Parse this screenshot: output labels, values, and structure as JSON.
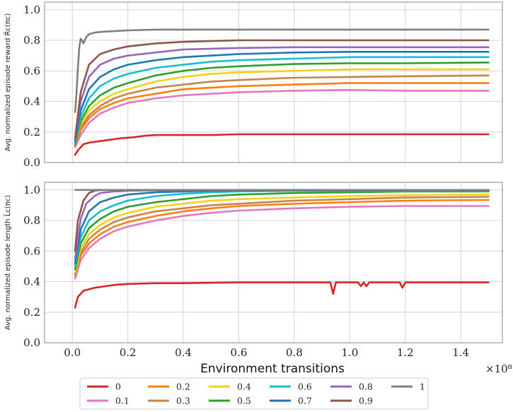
{
  "chart_data": [
    {
      "type": "line",
      "ylabel": "Avg. normalized episode reward R̂c(πc)",
      "xlabel": "",
      "xlim": [
        -0.1,
        1.55
      ],
      "ylim": [
        0.0,
        1.05
      ],
      "xticks": [
        0.0,
        0.2,
        0.4,
        0.6,
        0.8,
        1.0,
        1.2,
        1.4
      ],
      "yticks": [
        0.0,
        0.2,
        0.4,
        0.6,
        0.8,
        1.0
      ],
      "xtick_labels": [
        "",
        "",
        "",
        "",
        "",
        "",
        "",
        ""
      ],
      "ytick_labels": [
        "0.0",
        "0.2",
        "0.4",
        "0.6",
        "0.8",
        "1.0"
      ],
      "grid": true,
      "series": [
        {
          "name": "0",
          "color": "#d62728",
          "x": [
            0.01,
            0.02,
            0.04,
            0.06,
            0.1,
            0.14,
            0.18,
            0.22,
            0.26,
            0.3,
            0.4,
            0.5,
            0.6,
            0.7,
            0.8,
            1.0,
            1.2,
            1.5
          ],
          "y": [
            0.05,
            0.08,
            0.12,
            0.13,
            0.14,
            0.15,
            0.16,
            0.165,
            0.175,
            0.18,
            0.18,
            0.18,
            0.185,
            0.185,
            0.185,
            0.185,
            0.185,
            0.185
          ]
        },
        {
          "name": "0.1",
          "color": "#e377c2",
          "x": [
            0.01,
            0.03,
            0.06,
            0.1,
            0.15,
            0.2,
            0.3,
            0.4,
            0.5,
            0.6,
            0.8,
            1.0,
            1.2,
            1.5
          ],
          "y": [
            0.1,
            0.18,
            0.26,
            0.32,
            0.36,
            0.39,
            0.42,
            0.44,
            0.45,
            0.46,
            0.47,
            0.475,
            0.47,
            0.47
          ]
        },
        {
          "name": "0.2",
          "color": "#ff7f0e",
          "x": [
            0.01,
            0.03,
            0.06,
            0.1,
            0.15,
            0.2,
            0.3,
            0.4,
            0.5,
            0.6,
            0.8,
            1.0,
            1.2,
            1.5
          ],
          "y": [
            0.11,
            0.21,
            0.29,
            0.35,
            0.39,
            0.42,
            0.45,
            0.48,
            0.49,
            0.5,
            0.51,
            0.52,
            0.52,
            0.52
          ]
        },
        {
          "name": "0.3",
          "color": "#c5844e",
          "x": [
            0.01,
            0.03,
            0.06,
            0.1,
            0.15,
            0.2,
            0.3,
            0.4,
            0.5,
            0.6,
            0.8,
            1.0,
            1.2,
            1.5
          ],
          "y": [
            0.11,
            0.23,
            0.31,
            0.37,
            0.42,
            0.45,
            0.49,
            0.51,
            0.53,
            0.54,
            0.555,
            0.56,
            0.565,
            0.57
          ]
        },
        {
          "name": "0.4",
          "color": "#f7d117",
          "x": [
            0.01,
            0.03,
            0.06,
            0.1,
            0.15,
            0.2,
            0.3,
            0.4,
            0.5,
            0.6,
            0.8,
            1.0,
            1.2,
            1.5
          ],
          "y": [
            0.12,
            0.25,
            0.34,
            0.4,
            0.45,
            0.48,
            0.53,
            0.56,
            0.58,
            0.59,
            0.6,
            0.61,
            0.61,
            0.61
          ]
        },
        {
          "name": "0.5",
          "color": "#2ca02c",
          "x": [
            0.01,
            0.03,
            0.06,
            0.1,
            0.15,
            0.2,
            0.3,
            0.4,
            0.5,
            0.6,
            0.8,
            1.0,
            1.2,
            1.5
          ],
          "y": [
            0.12,
            0.27,
            0.37,
            0.44,
            0.49,
            0.52,
            0.57,
            0.6,
            0.62,
            0.63,
            0.645,
            0.65,
            0.65,
            0.655
          ]
        },
        {
          "name": "0.6",
          "color": "#17becf",
          "x": [
            0.01,
            0.03,
            0.06,
            0.1,
            0.15,
            0.2,
            0.3,
            0.4,
            0.5,
            0.6,
            0.8,
            1.0,
            1.2,
            1.5
          ],
          "y": [
            0.13,
            0.3,
            0.42,
            0.5,
            0.55,
            0.58,
            0.62,
            0.64,
            0.66,
            0.67,
            0.68,
            0.69,
            0.69,
            0.69
          ]
        },
        {
          "name": "0.7",
          "color": "#1f77b4",
          "x": [
            0.01,
            0.03,
            0.06,
            0.1,
            0.15,
            0.2,
            0.3,
            0.4,
            0.5,
            0.6,
            0.8,
            1.0,
            1.2,
            1.5
          ],
          "y": [
            0.14,
            0.34,
            0.48,
            0.56,
            0.61,
            0.64,
            0.67,
            0.69,
            0.7,
            0.71,
            0.72,
            0.725,
            0.725,
            0.725
          ]
        },
        {
          "name": "0.8",
          "color": "#9467bd",
          "x": [
            0.01,
            0.03,
            0.06,
            0.1,
            0.15,
            0.2,
            0.3,
            0.4,
            0.5,
            0.6,
            0.8,
            1.0,
            1.2,
            1.5
          ],
          "y": [
            0.15,
            0.4,
            0.56,
            0.64,
            0.68,
            0.7,
            0.72,
            0.74,
            0.745,
            0.75,
            0.755,
            0.755,
            0.755,
            0.755
          ]
        },
        {
          "name": "0.9",
          "color": "#8c564b",
          "x": [
            0.01,
            0.03,
            0.06,
            0.1,
            0.15,
            0.2,
            0.3,
            0.4,
            0.5,
            0.6,
            0.8,
            1.0,
            1.2,
            1.5
          ],
          "y": [
            0.16,
            0.46,
            0.64,
            0.71,
            0.74,
            0.76,
            0.78,
            0.79,
            0.795,
            0.8,
            0.8,
            0.8,
            0.8,
            0.8
          ]
        },
        {
          "name": "1",
          "color": "#7f7f7f",
          "x": [
            0.01,
            0.015,
            0.02,
            0.025,
            0.03,
            0.035,
            0.04,
            0.05,
            0.06,
            0.08,
            0.1,
            0.15,
            0.2,
            0.3,
            0.4,
            0.6,
            1.0,
            1.5
          ],
          "y": [
            0.33,
            0.45,
            0.62,
            0.75,
            0.81,
            0.8,
            0.78,
            0.82,
            0.84,
            0.85,
            0.855,
            0.86,
            0.865,
            0.87,
            0.87,
            0.87,
            0.87,
            0.87
          ]
        }
      ]
    },
    {
      "type": "line",
      "ylabel": "Avg. normalized episode length L̂c(πc)",
      "xlabel": "Environment transitions",
      "x_scale_label": "×10⁸",
      "xlim": [
        -0.1,
        1.55
      ],
      "ylim": [
        0.0,
        1.05
      ],
      "xticks": [
        0.0,
        0.2,
        0.4,
        0.6,
        0.8,
        1.0,
        1.2,
        1.4
      ],
      "yticks": [
        0.0,
        0.2,
        0.4,
        0.6,
        0.8,
        1.0
      ],
      "xtick_labels": [
        "0.0",
        "0.2",
        "0.4",
        "0.6",
        "0.8",
        "1.0",
        "1.2",
        "1.4"
      ],
      "ytick_labels": [
        "0.0",
        "0.2",
        "0.4",
        "0.6",
        "0.8",
        "1.0"
      ],
      "grid": true,
      "series": [
        {
          "name": "0",
          "color": "#d62728",
          "x": [
            0.01,
            0.02,
            0.04,
            0.08,
            0.12,
            0.16,
            0.2,
            0.3,
            0.4,
            0.6,
            0.8,
            0.93,
            0.94,
            0.95,
            1.0,
            1.03,
            1.04,
            1.05,
            1.06,
            1.07,
            1.1,
            1.18,
            1.19,
            1.2,
            1.3,
            1.5
          ],
          "y": [
            0.23,
            0.3,
            0.34,
            0.36,
            0.37,
            0.38,
            0.385,
            0.39,
            0.39,
            0.395,
            0.395,
            0.395,
            0.32,
            0.395,
            0.395,
            0.395,
            0.37,
            0.395,
            0.37,
            0.395,
            0.395,
            0.395,
            0.36,
            0.395,
            0.395,
            0.395
          ]
        },
        {
          "name": "0.1",
          "color": "#e377c2",
          "x": [
            0.01,
            0.03,
            0.06,
            0.1,
            0.15,
            0.2,
            0.3,
            0.4,
            0.5,
            0.6,
            0.8,
            1.0,
            1.2,
            1.5
          ],
          "y": [
            0.42,
            0.54,
            0.62,
            0.68,
            0.73,
            0.76,
            0.8,
            0.83,
            0.85,
            0.865,
            0.88,
            0.89,
            0.895,
            0.895
          ]
        },
        {
          "name": "0.2",
          "color": "#ff7f0e",
          "x": [
            0.01,
            0.03,
            0.06,
            0.1,
            0.15,
            0.2,
            0.3,
            0.4,
            0.5,
            0.6,
            0.8,
            1.0,
            1.2,
            1.5
          ],
          "y": [
            0.44,
            0.57,
            0.65,
            0.71,
            0.76,
            0.79,
            0.83,
            0.86,
            0.88,
            0.895,
            0.91,
            0.92,
            0.93,
            0.935
          ]
        },
        {
          "name": "0.3",
          "color": "#c5844e",
          "x": [
            0.01,
            0.03,
            0.06,
            0.1,
            0.15,
            0.2,
            0.3,
            0.4,
            0.5,
            0.6,
            0.8,
            1.0,
            1.2,
            1.5
          ],
          "y": [
            0.45,
            0.59,
            0.68,
            0.74,
            0.79,
            0.82,
            0.86,
            0.88,
            0.9,
            0.91,
            0.93,
            0.94,
            0.95,
            0.955
          ]
        },
        {
          "name": "0.4",
          "color": "#f7d117",
          "x": [
            0.01,
            0.03,
            0.06,
            0.1,
            0.15,
            0.2,
            0.3,
            0.4,
            0.5,
            0.6,
            0.8,
            1.0,
            1.2,
            1.5
          ],
          "y": [
            0.46,
            0.62,
            0.71,
            0.77,
            0.82,
            0.85,
            0.89,
            0.91,
            0.93,
            0.94,
            0.95,
            0.96,
            0.965,
            0.97
          ]
        },
        {
          "name": "0.5",
          "color": "#2ca02c",
          "x": [
            0.01,
            0.03,
            0.06,
            0.1,
            0.15,
            0.2,
            0.3,
            0.4,
            0.5,
            0.6,
            0.8,
            1.0,
            1.2,
            1.5
          ],
          "y": [
            0.48,
            0.65,
            0.75,
            0.81,
            0.86,
            0.89,
            0.92,
            0.94,
            0.96,
            0.97,
            0.98,
            0.985,
            0.99,
            0.99
          ]
        },
        {
          "name": "0.6",
          "color": "#17becf",
          "x": [
            0.01,
            0.03,
            0.06,
            0.1,
            0.15,
            0.2,
            0.3,
            0.4,
            0.5,
            0.6,
            0.8,
            1.0,
            1.2,
            1.5
          ],
          "y": [
            0.5,
            0.69,
            0.8,
            0.86,
            0.9,
            0.93,
            0.96,
            0.975,
            0.985,
            0.99,
            0.995,
            0.995,
            0.995,
            0.995
          ]
        },
        {
          "name": "0.7",
          "color": "#1f77b4",
          "x": [
            0.01,
            0.03,
            0.06,
            0.1,
            0.15,
            0.2,
            0.3,
            0.4,
            0.5,
            0.6,
            0.8,
            1.0,
            1.5
          ],
          "y": [
            0.52,
            0.74,
            0.86,
            0.92,
            0.95,
            0.97,
            0.985,
            0.99,
            0.995,
            0.997,
            0.998,
            0.998,
            0.998
          ]
        },
        {
          "name": "0.8",
          "color": "#9467bd",
          "x": [
            0.01,
            0.03,
            0.05,
            0.08,
            0.1,
            0.15,
            0.2,
            0.3,
            0.5,
            1.0,
            1.5
          ],
          "y": [
            0.55,
            0.81,
            0.91,
            0.96,
            0.98,
            0.99,
            0.995,
            0.998,
            1.0,
            1.0,
            1.0
          ]
        },
        {
          "name": "0.9",
          "color": "#8c564b",
          "x": [
            0.01,
            0.02,
            0.04,
            0.06,
            0.08,
            0.1,
            0.15,
            0.3,
            1.0,
            1.5
          ],
          "y": [
            0.6,
            0.8,
            0.93,
            0.98,
            0.995,
            1.0,
            1.0,
            1.0,
            1.0,
            1.0
          ]
        },
        {
          "name": "1",
          "color": "#7f7f7f",
          "x": [
            0.01,
            0.2,
            0.5,
            1.0,
            1.5
          ],
          "y": [
            1.0,
            1.0,
            1.0,
            1.0,
            1.0
          ]
        }
      ]
    }
  ],
  "legend": {
    "placement": "bottom",
    "entries": [
      {
        "label": "0",
        "color": "#d62728"
      },
      {
        "label": "0.1",
        "color": "#e377c2"
      },
      {
        "label": "0.2",
        "color": "#ff7f0e"
      },
      {
        "label": "0.3",
        "color": "#c5844e"
      },
      {
        "label": "0.4",
        "color": "#f7d117"
      },
      {
        "label": "0.5",
        "color": "#2ca02c"
      },
      {
        "label": "0.6",
        "color": "#17becf"
      },
      {
        "label": "0.7",
        "color": "#1f77b4"
      },
      {
        "label": "0.8",
        "color": "#9467bd"
      },
      {
        "label": "0.9",
        "color": "#8c564b"
      },
      {
        "label": "1",
        "color": "#7f7f7f"
      }
    ]
  }
}
